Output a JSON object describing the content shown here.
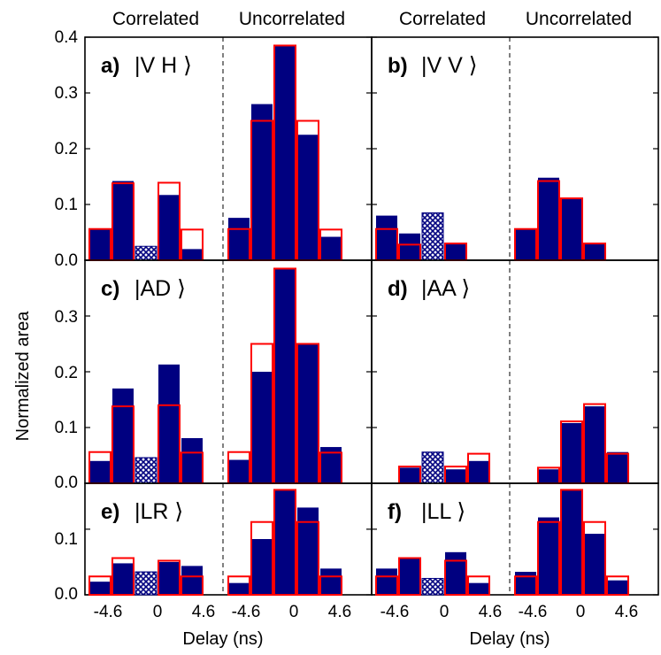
{
  "figure": {
    "ylabel": "Normalized area",
    "xlabel": "Delay (ns)",
    "top_labels": [
      "Correlated",
      "Uncorrelated",
      "Correlated",
      "Uncorrelated"
    ],
    "x_ticks": [
      "-4.6",
      "0",
      "4.6",
      "-4.6",
      "0",
      "4.6"
    ],
    "y_ticks_top": [
      "0.0",
      "0.1",
      "0.2",
      "0.3",
      "0.4"
    ],
    "y_ticks_mid": [
      "0.0",
      "0.1",
      "0.2",
      "0.3"
    ],
    "y_ticks_bot": [
      "0.0",
      "0.1"
    ]
  },
  "colors": {
    "measured": "#000080",
    "theory_outline": "#ff0000",
    "background": "#ffffff"
  },
  "chart_data": [
    {
      "type": "bar",
      "panel": "a",
      "label": "a)",
      "state": "|V H ⟩",
      "ylim": [
        0,
        0.4
      ],
      "categories": [
        "-9.2",
        "-4.6",
        "0",
        "4.6",
        "9.2",
        "-9.2",
        "-4.6",
        "0",
        "4.6",
        "9.2"
      ],
      "series": [
        {
          "values": [
            0.056,
            0.142,
            0.025,
            0.117,
            0.02,
            0.076,
            0.28,
            0.385,
            0.225,
            0.042
          ]
        },
        {
          "values": [
            0.056,
            0.138,
            0.0,
            0.139,
            0.055,
            0.056,
            0.25,
            0.385,
            0.25,
            0.055
          ]
        }
      ],
      "hatched_index": 2
    },
    {
      "type": "bar",
      "panel": "b",
      "label": "b)",
      "state": "|V V ⟩",
      "ylim": [
        0,
        0.4
      ],
      "categories": [
        "-9.2",
        "-4.6",
        "0",
        "4.6",
        "9.2",
        "-9.2",
        "-4.6",
        "0",
        "4.6",
        "9.2"
      ],
      "series": [
        {
          "values": [
            0.08,
            0.048,
            0.085,
            0.03,
            0.0,
            0.056,
            0.148,
            0.111,
            0.03,
            0.0
          ]
        },
        {
          "values": [
            0.056,
            0.028,
            0.0,
            0.03,
            0.0,
            0.056,
            0.142,
            0.111,
            0.03,
            0.0
          ]
        }
      ],
      "hatched_index": 2
    },
    {
      "type": "bar",
      "panel": "c",
      "label": "c)",
      "state": "|AD ⟩",
      "ylim": [
        0,
        0.4
      ],
      "categories": [
        "-9.2",
        "-4.6",
        "0",
        "4.6",
        "9.2",
        "-9.2",
        "-4.6",
        "0",
        "4.6",
        "9.2"
      ],
      "series": [
        {
          "values": [
            0.04,
            0.17,
            0.046,
            0.213,
            0.081,
            0.042,
            0.2,
            0.385,
            0.25,
            0.065
          ]
        },
        {
          "values": [
            0.056,
            0.138,
            0.0,
            0.14,
            0.055,
            0.056,
            0.25,
            0.385,
            0.25,
            0.055
          ]
        }
      ],
      "hatched_index": 2
    },
    {
      "type": "bar",
      "panel": "d",
      "label": "d)",
      "state": "|AA ⟩",
      "ylim": [
        0,
        0.4
      ],
      "categories": [
        "-9.2",
        "-4.6",
        "0",
        "4.6",
        "9.2",
        "-9.2",
        "-4.6",
        "0",
        "4.6",
        "9.2"
      ],
      "series": [
        {
          "values": [
            0.0,
            0.028,
            0.056,
            0.025,
            0.04,
            0.0,
            0.025,
            0.108,
            0.138,
            0.056
          ]
        },
        {
          "values": [
            0.0,
            0.03,
            0.0,
            0.03,
            0.053,
            0.0,
            0.028,
            0.111,
            0.142,
            0.053
          ]
        }
      ],
      "hatched_index": 2
    },
    {
      "type": "bar",
      "panel": "e",
      "label": "e)",
      "state": "|LR ⟩",
      "ylim": [
        0,
        0.17
      ],
      "categories": [
        "-9.2",
        "-4.6",
        "0",
        "4.6",
        "9.2",
        "-9.2",
        "-4.6",
        "0",
        "4.6",
        "9.2"
      ],
      "series": [
        {
          "values": [
            0.02,
            0.048,
            0.035,
            0.05,
            0.044,
            0.018,
            0.085,
            0.16,
            0.133,
            0.04
          ]
        },
        {
          "values": [
            0.028,
            0.056,
            0.0,
            0.052,
            0.028,
            0.028,
            0.111,
            0.16,
            0.111,
            0.028
          ]
        }
      ],
      "hatched_index": 2
    },
    {
      "type": "bar",
      "panel": "f",
      "label": "f)",
      "state": "|LL ⟩",
      "ylim": [
        0,
        0.17
      ],
      "categories": [
        "-9.2",
        "-4.6",
        "0",
        "4.6",
        "9.2",
        "-9.2",
        "-4.6",
        "0",
        "4.6",
        "9.2"
      ],
      "series": [
        {
          "values": [
            0.04,
            0.056,
            0.025,
            0.065,
            0.018,
            0.035,
            0.118,
            0.16,
            0.093,
            0.022
          ]
        },
        {
          "values": [
            0.028,
            0.056,
            0.0,
            0.052,
            0.028,
            0.028,
            0.111,
            0.16,
            0.111,
            0.028
          ]
        }
      ],
      "hatched_index": 2
    }
  ]
}
